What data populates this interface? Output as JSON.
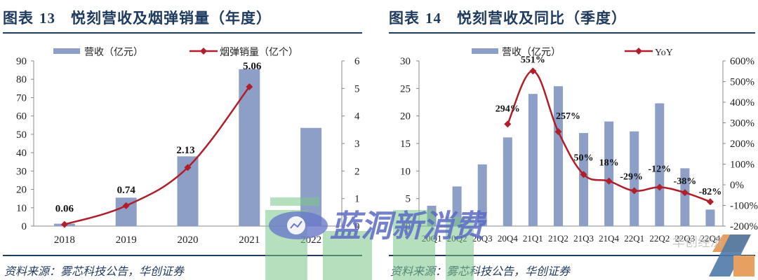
{
  "left": {
    "title_prefix": "图表",
    "title_num": "13",
    "title_text": "悦刻营收及烟弹销量（年度）",
    "source": "资料来源：雾芯科技公告，华创证券",
    "legend": {
      "bar": "营收（亿元）",
      "line": "烟弹销量（亿个）"
    }
  },
  "right": {
    "title_prefix": "图表",
    "title_num": "14",
    "title_text": "悦刻营收及同比（季度）",
    "source": "资料来源：雾芯科技公告，华创证券",
    "legend": {
      "bar": "营收（亿元）",
      "line": "YoY"
    }
  },
  "watermark": {
    "text": "蓝洞新消费",
    "corner_text": "华创经济"
  },
  "colors": {
    "bar": "#8d9fc6",
    "line": "#b01e2a",
    "title": "#1f3a5f",
    "rule": "#1c3d5e"
  },
  "chart_data": [
    {
      "type": "bar",
      "title": "悦刻营收及烟弹销量（年度）",
      "categories": [
        "2018",
        "2019",
        "2020",
        "2021",
        "2022"
      ],
      "series": [
        {
          "name": "营收（亿元）",
          "type": "bar",
          "axis": "left",
          "values": [
            1.3,
            15.5,
            38,
            85.5,
            53.5
          ]
        },
        {
          "name": "烟弹销量（亿个）",
          "type": "line",
          "axis": "right",
          "values": [
            0.06,
            0.74,
            2.13,
            5.06,
            null
          ],
          "labels": [
            "0.06",
            "0.74",
            "2.13",
            "5.06"
          ]
        }
      ],
      "ylabel": "",
      "xlabel": "",
      "ylim": [
        0,
        90
      ],
      "yticks": [
        0,
        10,
        20,
        30,
        40,
        50,
        60,
        70,
        80,
        90
      ],
      "y2lim": [
        0,
        6
      ],
      "y2ticks": [
        0,
        1,
        2,
        3,
        4,
        5,
        6
      ],
      "legend_position": "top",
      "grid": false
    },
    {
      "type": "bar",
      "title": "悦刻营收及同比（季度）",
      "categories": [
        "20Q1",
        "20Q2",
        "20Q3",
        "20Q4",
        "21Q1",
        "21Q2",
        "21Q3",
        "21Q4",
        "22Q1",
        "22Q2",
        "22Q3",
        "22Q4"
      ],
      "series": [
        {
          "name": "营收（亿元）",
          "type": "bar",
          "axis": "left",
          "values": [
            3.7,
            7.2,
            11.2,
            16.1,
            24.0,
            25.4,
            16.9,
            19.0,
            17.2,
            22.3,
            10.5,
            3.0
          ]
        },
        {
          "name": "YoY",
          "type": "line",
          "axis": "right",
          "values": [
            null,
            null,
            null,
            2.94,
            5.51,
            2.57,
            0.5,
            0.18,
            -0.29,
            -0.12,
            -0.38,
            -0.82
          ],
          "labels": [
            "294%",
            "551%",
            "257%",
            "50%",
            "18%",
            "-29%",
            "-12%",
            "-38%",
            "-82%"
          ]
        }
      ],
      "ylabel": "",
      "xlabel": "",
      "ylim": [
        0,
        30
      ],
      "yticks": [
        0,
        5,
        10,
        15,
        20,
        25,
        30
      ],
      "y2lim": [
        -2,
        6
      ],
      "y2ticks": [
        "-200%",
        "-100%",
        "0%",
        "100%",
        "200%",
        "300%",
        "400%",
        "500%",
        "600%"
      ],
      "legend_position": "top",
      "grid": false
    }
  ]
}
